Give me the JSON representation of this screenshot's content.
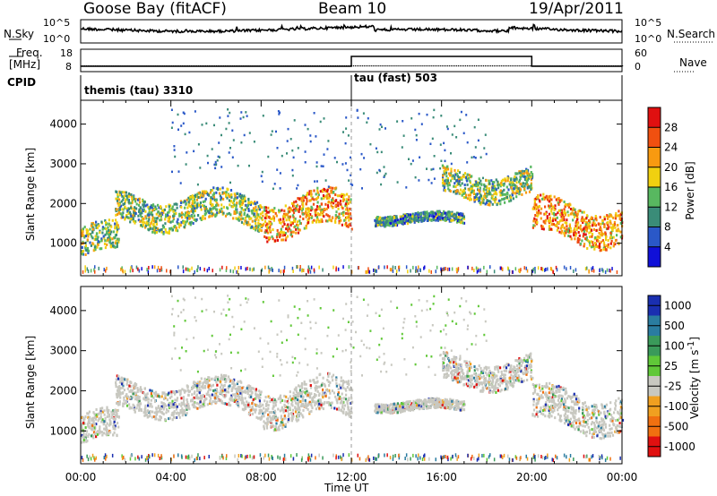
{
  "header": {
    "station": "Goose Bay (fitACF)",
    "beam": "Beam 10",
    "date": "19/Apr/2011"
  },
  "top_panels": {
    "nsky_label": "N.Sky",
    "nsky_ticks": [
      "10^5",
      "10^0"
    ],
    "nsearch_label": "N.Search",
    "nsearch_ticks": [
      "10^5",
      "10^0"
    ],
    "freq_label_1": "Freq.",
    "freq_label_2": "[MHz]",
    "freq_ticks": [
      "18",
      "8"
    ],
    "nave_label": "Nave",
    "nave_ticks": [
      "60",
      "0"
    ],
    "cpid_label": "CPID",
    "cpid_entries": [
      {
        "name": "themis (tau) 3310"
      },
      {
        "name": "tau (fast) 503"
      }
    ]
  },
  "chart_data": [
    {
      "type": "heatmap",
      "panel": "power",
      "ylabel": "Slant Range [km]",
      "ylim": [
        180,
        4600
      ],
      "yticks": [
        1000,
        2000,
        3000,
        4000
      ],
      "colorbar_label": "Power [dB]",
      "colorbar_ticks": [
        "4",
        "8",
        "12",
        "16",
        "20",
        "24",
        "28"
      ],
      "colorbar_colors": [
        "#1010d8",
        "#2a58c8",
        "#3a8c78",
        "#58b860",
        "#f0d010",
        "#f89a10",
        "#f05010",
        "#e01010"
      ],
      "scatter_regions": [
        {
          "t_start": "00:00",
          "t_end": "01:40",
          "range_km": [
            600,
            1500
          ],
          "level": "medium"
        },
        {
          "t_start": "01:30",
          "t_end": "08:00",
          "range_km": [
            1400,
            2300
          ],
          "level": "medium"
        },
        {
          "t_start": "08:00",
          "t_end": "12:00",
          "range_km": [
            1200,
            2300
          ],
          "level": "high"
        },
        {
          "t_start": "13:00",
          "t_end": "17:00",
          "range_km": [
            1500,
            1800
          ],
          "level": "low"
        },
        {
          "t_start": "16:00",
          "t_end": "20:00",
          "range_km": [
            2100,
            2900
          ],
          "level": "medium"
        },
        {
          "t_start": "20:00",
          "t_end": "24:00",
          "range_km": [
            1000,
            2100
          ],
          "level": "high"
        }
      ]
    },
    {
      "type": "heatmap",
      "panel": "velocity",
      "xlabel": "Time UT",
      "ylabel": "Slant Range [km]",
      "ylim": [
        180,
        4600
      ],
      "yticks": [
        1000,
        2000,
        3000,
        4000
      ],
      "xticks": [
        "00:00",
        "04:00",
        "08:00",
        "12:00",
        "16:00",
        "20:00",
        "00:00"
      ],
      "colorbar_label": "Velocity [m s^-1]",
      "colorbar_ticks": [
        "1000",
        "500",
        "100",
        "25",
        "-25",
        "-100",
        "-500",
        "-1000"
      ],
      "colorbar_colors": [
        "#1a2fb0",
        "#2a7ca0",
        "#3a9a5a",
        "#60c838",
        "#c8c8c0",
        "#f0a020",
        "#f07010",
        "#e01010"
      ],
      "ground_scatter_color": "#c8c8c0"
    }
  ],
  "axis_footer": {
    "xticks": [
      "00:00",
      "04:00",
      "08:00",
      "12:00",
      "16:00",
      "20:00",
      "00:00"
    ],
    "xlabel": "Time UT"
  }
}
